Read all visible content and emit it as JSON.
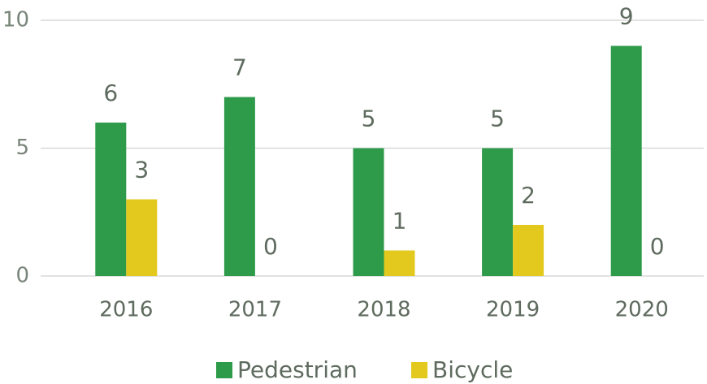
{
  "chart_data": {
    "type": "bar",
    "categories": [
      "2016",
      "2017",
      "2018",
      "2019",
      "2020"
    ],
    "series": [
      {
        "name": "Pedestrian",
        "color": "#2e9b4a",
        "values": [
          6,
          7,
          5,
          5,
          9
        ]
      },
      {
        "name": "Bicycle",
        "color": "#e3c91e",
        "values": [
          3,
          0,
          1,
          2,
          0
        ]
      }
    ],
    "ylim": [
      0,
      10
    ],
    "yticks": [
      0,
      5,
      10
    ],
    "grid": true,
    "legend": "bottom"
  }
}
